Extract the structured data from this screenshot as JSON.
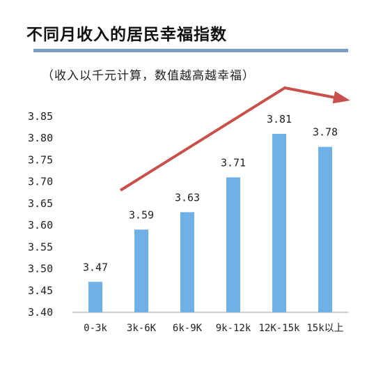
{
  "chart_data": {
    "type": "bar",
    "title": "不同月收入的居民幸福指数",
    "subtitle": "（收入以千元计算，数值越高越幸福）",
    "categories": [
      "0-3k",
      "3k-6K",
      "6k-9K",
      "9k-12k",
      "12K-15k",
      "15k以上"
    ],
    "values": [
      3.47,
      3.59,
      3.63,
      3.71,
      3.81,
      3.78
    ],
    "data_labels": [
      "3.47",
      "3.59",
      "3.63",
      "3.71",
      "3.81",
      "3.78"
    ],
    "ylim": [
      3.4,
      3.85
    ],
    "y_ticks": [
      "3.40",
      "3.45",
      "3.50",
      "3.55",
      "3.60",
      "3.65",
      "3.70",
      "3.75",
      "3.80",
      "3.85"
    ],
    "grid": false,
    "legend": "none",
    "bar_color": "#6fb0e6",
    "trend_arrow_color": "#c9504a",
    "title_rule_color": "#7a9cc8"
  }
}
